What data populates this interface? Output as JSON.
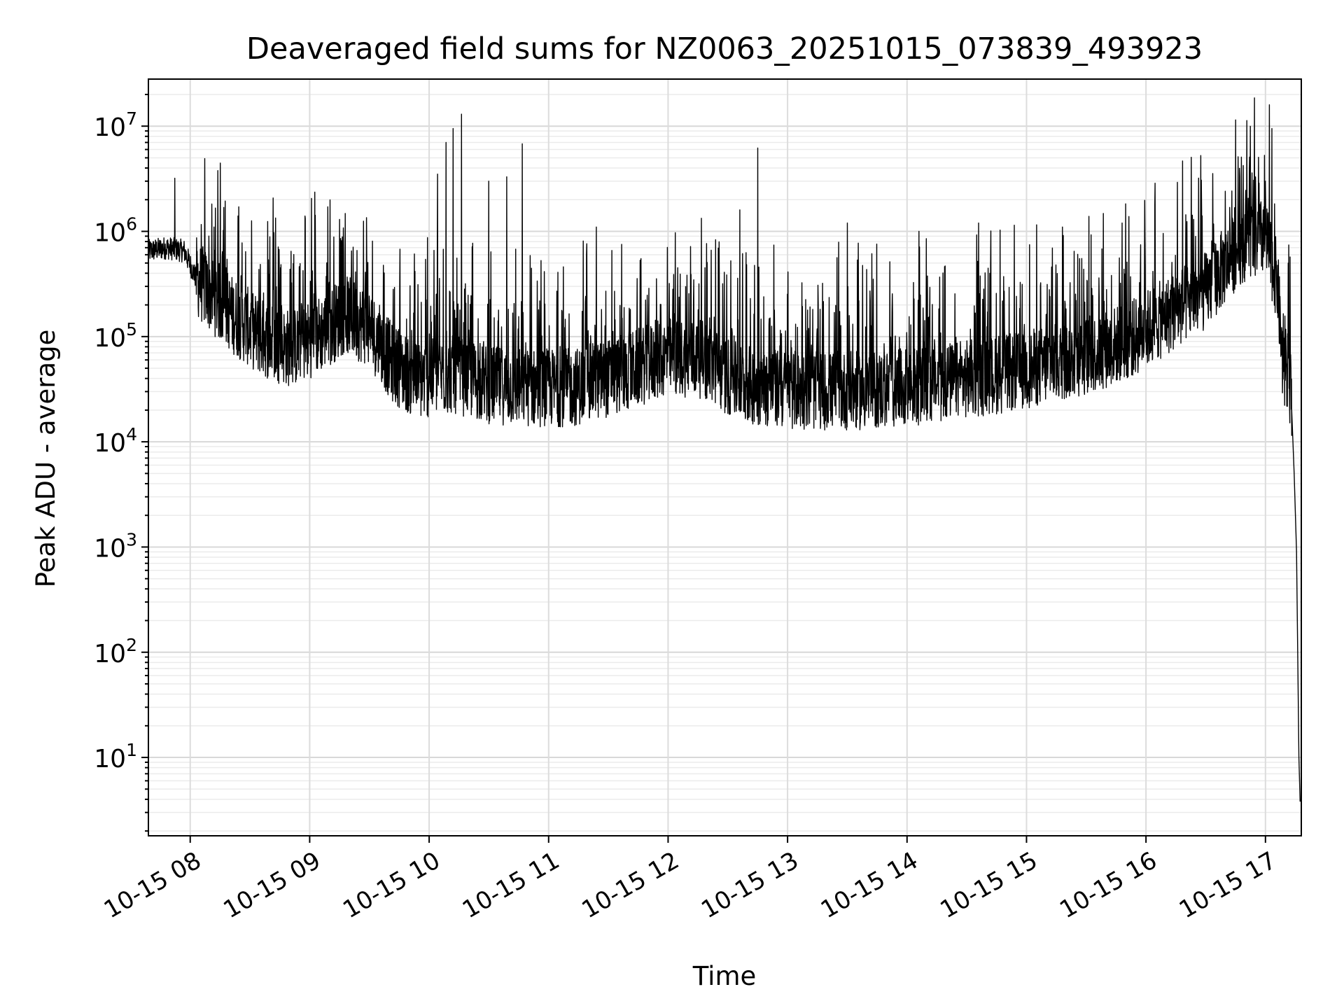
{
  "chart_data": {
    "type": "line",
    "title": "Deaveraged field sums for NZ0063_20251015_073839_493923",
    "xlabel": "Time",
    "ylabel": "Peak ADU - average",
    "yscale": "log",
    "xlim_hours": [
      7.65,
      17.3
    ],
    "ylim": [
      1.8,
      28000000
    ],
    "grid": true,
    "x_ticks": [
      {
        "hour": 8,
        "label": "10-15 08"
      },
      {
        "hour": 9,
        "label": "10-15 09"
      },
      {
        "hour": 10,
        "label": "10-15 10"
      },
      {
        "hour": 11,
        "label": "10-15 11"
      },
      {
        "hour": 12,
        "label": "10-15 12"
      },
      {
        "hour": 13,
        "label": "10-15 13"
      },
      {
        "hour": 14,
        "label": "10-15 14"
      },
      {
        "hour": 15,
        "label": "10-15 15"
      },
      {
        "hour": 16,
        "label": "10-15 16"
      },
      {
        "hour": 17,
        "label": "10-15 17"
      }
    ],
    "y_ticks": [
      {
        "exp": 1,
        "base": "10",
        "sup": "1"
      },
      {
        "exp": 2,
        "base": "10",
        "sup": "2"
      },
      {
        "exp": 3,
        "base": "10",
        "sup": "3"
      },
      {
        "exp": 4,
        "base": "10",
        "sup": "4"
      },
      {
        "exp": 5,
        "base": "10",
        "sup": "5"
      },
      {
        "exp": 6,
        "base": "10",
        "sup": "6"
      },
      {
        "exp": 7,
        "base": "10",
        "sup": "7"
      }
    ],
    "series": [
      {
        "name": "Deaveraged field sums",
        "color": "#000000",
        "baseline_envelope": [
          [
            7.65,
            650000
          ],
          [
            7.8,
            700000
          ],
          [
            7.95,
            650000
          ],
          [
            8.08,
            300000
          ],
          [
            8.35,
            150000
          ],
          [
            8.6,
            90000
          ],
          [
            8.85,
            70000
          ],
          [
            9.1,
            100000
          ],
          [
            9.3,
            150000
          ],
          [
            9.5,
            110000
          ],
          [
            9.7,
            50000
          ],
          [
            9.9,
            35000
          ],
          [
            10.2,
            40000
          ],
          [
            10.5,
            32000
          ],
          [
            10.8,
            30000
          ],
          [
            11.2,
            30000
          ],
          [
            11.6,
            40000
          ],
          [
            12.0,
            60000
          ],
          [
            12.3,
            55000
          ],
          [
            12.55,
            35000
          ],
          [
            12.8,
            30000
          ],
          [
            13.2,
            28000
          ],
          [
            13.6,
            28000
          ],
          [
            14.0,
            30000
          ],
          [
            14.4,
            35000
          ],
          [
            14.8,
            40000
          ],
          [
            15.2,
            50000
          ],
          [
            15.6,
            65000
          ],
          [
            15.9,
            90000
          ],
          [
            16.2,
            150000
          ],
          [
            16.5,
            250000
          ],
          [
            16.8,
            700000
          ],
          [
            17.0,
            800000
          ],
          [
            17.1,
            300000
          ],
          [
            17.15,
            40000
          ],
          [
            17.2,
            35000
          ],
          [
            17.22,
            20000
          ],
          [
            17.24,
            5000
          ],
          [
            17.26,
            900
          ],
          [
            17.28,
            10
          ],
          [
            17.29,
            3.8
          ]
        ],
        "spikes": [
          [
            7.87,
            3200000
          ],
          [
            8.2,
            1100000
          ],
          [
            8.4,
            1400000
          ],
          [
            9.25,
            1300000
          ],
          [
            9.45,
            1250000
          ],
          [
            10.07,
            3500000
          ],
          [
            10.14,
            7000000
          ],
          [
            10.2,
            9500000
          ],
          [
            10.27,
            13000000
          ],
          [
            10.5,
            3000000
          ],
          [
            10.65,
            3300000
          ],
          [
            10.78,
            6800000
          ],
          [
            11.4,
            1100000
          ],
          [
            12.6,
            1600000
          ],
          [
            12.75,
            6200000
          ],
          [
            13.5,
            1200000
          ],
          [
            14.1,
            1000000
          ],
          [
            14.6,
            1200000
          ],
          [
            15.3,
            1100000
          ],
          [
            15.8,
            1200000
          ],
          [
            16.4,
            1300000
          ],
          [
            16.98,
            1600000
          ]
        ]
      }
    ]
  }
}
